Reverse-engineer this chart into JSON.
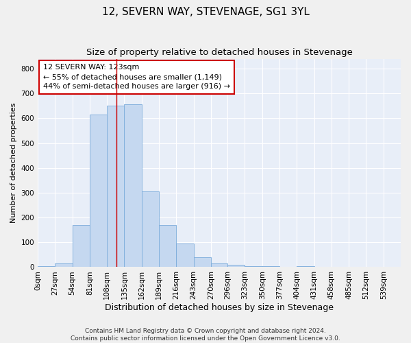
{
  "title": "12, SEVERN WAY, STEVENAGE, SG1 3YL",
  "subtitle": "Size of property relative to detached houses in Stevenage",
  "xlabel": "Distribution of detached houses by size in Stevenage",
  "ylabel": "Number of detached properties",
  "bar_color": "#c5d8f0",
  "bar_edge_color": "#7aabda",
  "background_color": "#e8eef8",
  "grid_color": "#ffffff",
  "bin_labels": [
    "0sqm",
    "27sqm",
    "54sqm",
    "81sqm",
    "108sqm",
    "135sqm",
    "162sqm",
    "189sqm",
    "216sqm",
    "243sqm",
    "270sqm",
    "296sqm",
    "323sqm",
    "350sqm",
    "377sqm",
    "404sqm",
    "431sqm",
    "458sqm",
    "485sqm",
    "512sqm",
    "539sqm"
  ],
  "bar_heights": [
    5,
    15,
    170,
    615,
    650,
    655,
    305,
    170,
    95,
    40,
    15,
    10,
    5,
    5,
    0,
    5,
    0,
    0,
    0,
    0,
    0
  ],
  "bin_edges": [
    0,
    27,
    54,
    81,
    108,
    135,
    162,
    189,
    216,
    243,
    270,
    296,
    323,
    350,
    377,
    404,
    431,
    458,
    485,
    512,
    539,
    566
  ],
  "property_size": 123,
  "vline_color": "#cc0000",
  "annotation_line1": "12 SEVERN WAY: 123sqm",
  "annotation_line2": "← 55% of detached houses are smaller (1,149)",
  "annotation_line3": "44% of semi-detached houses are larger (916) →",
  "annotation_box_color": "#ffffff",
  "annotation_box_edge_color": "#cc0000",
  "ylim": [
    0,
    840
  ],
  "yticks": [
    0,
    100,
    200,
    300,
    400,
    500,
    600,
    700,
    800
  ],
  "footer_text": "Contains HM Land Registry data © Crown copyright and database right 2024.\nContains public sector information licensed under the Open Government Licence v3.0.",
  "title_fontsize": 11,
  "subtitle_fontsize": 9.5,
  "xlabel_fontsize": 9,
  "ylabel_fontsize": 8,
  "tick_fontsize": 7.5,
  "annotation_fontsize": 8,
  "footer_fontsize": 6.5
}
